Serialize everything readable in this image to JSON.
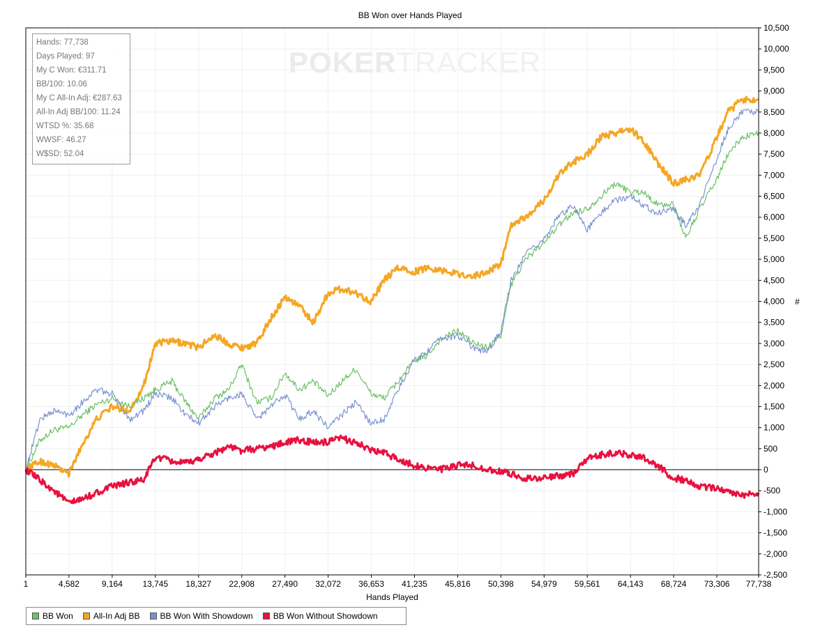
{
  "chart_data": {
    "type": "line",
    "title": "BB Won over Hands Played",
    "xlabel": "Hands Played",
    "ylabel": "#",
    "xlim": [
      1,
      77738
    ],
    "ylim": [
      -2500,
      10500
    ],
    "x_ticks": [
      "1",
      "4,582",
      "9,164",
      "13,745",
      "18,327",
      "22,908",
      "27,490",
      "32,072",
      "36,653",
      "41,235",
      "45,816",
      "50,398",
      "54,979",
      "59,561",
      "64,143",
      "68,724",
      "73,306",
      "77,738"
    ],
    "x_tick_values": [
      1,
      4582,
      9164,
      13745,
      18327,
      22908,
      27490,
      32072,
      36653,
      41235,
      45816,
      50398,
      54979,
      59561,
      64143,
      68724,
      73306,
      77738
    ],
    "y_ticks": [
      "10,500",
      "10,000",
      "9,500",
      "9,000",
      "8,500",
      "8,000",
      "7,500",
      "7,000",
      "6,500",
      "6,000",
      "5,500",
      "5,000",
      "4,500",
      "4,000",
      "3,500",
      "3,000",
      "2,500",
      "2,000",
      "1,500",
      "1,000",
      "500",
      "0",
      "-500",
      "-1,000",
      "-1,500",
      "-2,000",
      "-2,500"
    ],
    "y_tick_values": [
      10500,
      10000,
      9500,
      9000,
      8500,
      8000,
      7500,
      7000,
      6500,
      6000,
      5500,
      5000,
      4500,
      4000,
      3500,
      3000,
      2500,
      2000,
      1500,
      1000,
      500,
      0,
      -500,
      -1000,
      -1500,
      -2000,
      -2500
    ],
    "grid": true,
    "legend_position": "bottom-left",
    "x": [
      1,
      1500,
      3000,
      4582,
      6000,
      7500,
      9164,
      11000,
      12500,
      13745,
      15500,
      17000,
      18327,
      20000,
      21500,
      22908,
      24500,
      26000,
      27490,
      29000,
      30500,
      32072,
      33500,
      35000,
      36653,
      38000,
      39500,
      41235,
      42500,
      44000,
      45816,
      47500,
      49000,
      50398,
      51500,
      53000,
      54979,
      56500,
      58000,
      59561,
      61000,
      62500,
      64143,
      65500,
      67000,
      68724,
      70000,
      71500,
      73306,
      74500,
      76000,
      77738
    ],
    "series": [
      {
        "name": "BB Won",
        "color": "#6cc067",
        "width": 1.2,
        "values": [
          0,
          700,
          950,
          1000,
          1300,
          1550,
          1700,
          1500,
          1700,
          1900,
          2100,
          1600,
          1200,
          1700,
          1900,
          2500,
          1600,
          1700,
          2300,
          1900,
          2100,
          1750,
          2100,
          2400,
          1800,
          1700,
          2100,
          2600,
          2700,
          3100,
          3300,
          3000,
          2900,
          3200,
          4400,
          5000,
          5400,
          5800,
          6100,
          6200,
          6500,
          6800,
          6600,
          6600,
          6300,
          6300,
          5500,
          6200,
          6900,
          7500,
          7900,
          8000
        ]
      },
      {
        "name": "All-In Adj BB",
        "color": "#f5a623",
        "width": 3,
        "values": [
          0,
          200,
          100,
          -100,
          600,
          1200,
          1500,
          1400,
          2000,
          3000,
          3050,
          3000,
          2900,
          3200,
          3000,
          2900,
          3000,
          3600,
          4100,
          3900,
          3500,
          4200,
          4300,
          4200,
          4000,
          4500,
          4800,
          4700,
          4800,
          4750,
          4650,
          4600,
          4700,
          4900,
          5800,
          6000,
          6400,
          7000,
          7300,
          7500,
          7900,
          8000,
          8100,
          7800,
          7300,
          6800,
          6900,
          7000,
          7900,
          8500,
          8800,
          8800
        ]
      },
      {
        "name": "BB Won With Showdown",
        "color": "#7a93cf",
        "width": 1.2,
        "values": [
          0,
          1200,
          1400,
          1300,
          1600,
          1900,
          1800,
          1200,
          1400,
          1800,
          1700,
          1300,
          1100,
          1500,
          1700,
          1800,
          1200,
          1500,
          1800,
          1200,
          1400,
          1000,
          1300,
          1600,
          1100,
          1200,
          1900,
          2600,
          2800,
          3100,
          3200,
          2900,
          2800,
          3300,
          4500,
          5100,
          5500,
          6000,
          6300,
          5700,
          6100,
          6400,
          6500,
          6300,
          6100,
          6200,
          5800,
          6300,
          7400,
          8100,
          8500,
          8500
        ]
      },
      {
        "name": "BB Won Without Showdown",
        "color": "#e8113f",
        "width": 3,
        "values": [
          0,
          -250,
          -500,
          -800,
          -700,
          -550,
          -400,
          -300,
          -250,
          300,
          200,
          150,
          250,
          400,
          550,
          450,
          500,
          550,
          650,
          700,
          650,
          650,
          750,
          650,
          450,
          400,
          250,
          100,
          50,
          0,
          100,
          100,
          0,
          -50,
          -100,
          -200,
          -200,
          -150,
          -100,
          250,
          350,
          400,
          350,
          300,
          100,
          -200,
          -250,
          -400,
          -450,
          -500,
          -600,
          -550
        ]
      }
    ]
  },
  "stats": {
    "lines": [
      "Hands: 77,738",
      "Days Played: 97",
      "My C Won: €311.71",
      "BB/100: 10.06",
      "My C All-In Adj: €287.63",
      "All-In Adj BB/100: 11.24",
      "WTSD %: 35.68",
      "WWSF: 46.27",
      "W$SD: 52.04"
    ]
  },
  "watermark": {
    "part1": "POKER",
    "part2": "TRACKER"
  }
}
